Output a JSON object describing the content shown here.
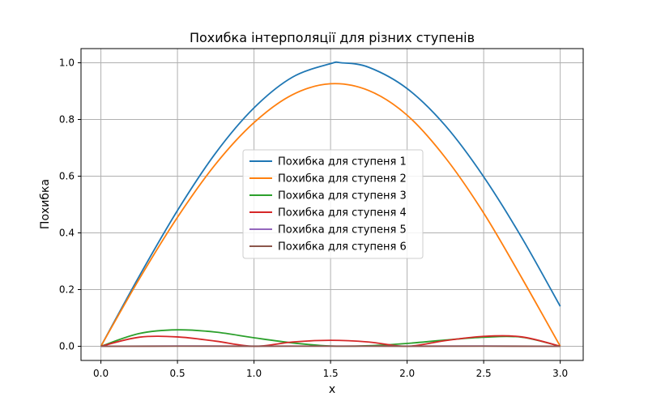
{
  "chart_data": {
    "type": "line",
    "title": "Похибка інтерполяції для різних ступенів",
    "xlabel": "x",
    "ylabel": "Похибка",
    "xlim": [
      -0.13,
      3.15
    ],
    "ylim": [
      -0.05,
      1.05
    ],
    "xticks": [
      "0.0",
      "0.5",
      "1.0",
      "1.5",
      "2.0",
      "2.5",
      "3.0"
    ],
    "yticks": [
      "0.0",
      "0.2",
      "0.4",
      "0.6",
      "0.8",
      "1.0"
    ],
    "grid": true,
    "legend_position": "center",
    "series": [
      {
        "name": "Похибка для ступеня 1",
        "color": "#1f77b4",
        "x": [
          0,
          0.25,
          0.5,
          0.75,
          1.0,
          1.25,
          1.5,
          1.57,
          1.75,
          2.0,
          2.25,
          2.5,
          2.75,
          3.0
        ],
        "y": [
          0,
          0.247,
          0.479,
          0.682,
          0.841,
          0.949,
          0.997,
          1.0,
          0.984,
          0.909,
          0.778,
          0.598,
          0.382,
          0.141
        ]
      },
      {
        "name": "Похибка для ступеня 2",
        "color": "#ff7f0e",
        "x": [
          0,
          0.25,
          0.5,
          0.75,
          1.0,
          1.25,
          1.5,
          1.75,
          2.0,
          2.25,
          2.5,
          2.75,
          3.0
        ],
        "y": [
          0,
          0.237,
          0.455,
          0.643,
          0.789,
          0.887,
          0.926,
          0.902,
          0.815,
          0.665,
          0.47,
          0.24,
          0
        ]
      },
      {
        "name": "Похибка для ступеня 3",
        "color": "#2ca02c",
        "x": [
          0,
          0.25,
          0.5,
          0.75,
          1.0,
          1.25,
          1.5,
          1.75,
          2.0,
          2.25,
          2.5,
          2.75,
          3.0
        ],
        "y": [
          0,
          0.045,
          0.058,
          0.05,
          0.03,
          0.012,
          0.001,
          0.002,
          0.01,
          0.022,
          0.032,
          0.032,
          0
        ]
      },
      {
        "name": "Похибка для ступеня 4",
        "color": "#d62728",
        "x": [
          0,
          0.25,
          0.5,
          0.75,
          1.0,
          1.25,
          1.5,
          1.75,
          2.0,
          2.25,
          2.5,
          2.75,
          3.0
        ],
        "y": [
          0,
          0.032,
          0.033,
          0.018,
          0,
          0.015,
          0.021,
          0.015,
          0,
          0.02,
          0.035,
          0.033,
          0
        ]
      },
      {
        "name": "Похибка для ступеня 5",
        "color": "#9467bd",
        "x": [
          0,
          0.5,
          1.0,
          1.5,
          2.0,
          2.5,
          3.0
        ],
        "y": [
          0,
          0.001,
          0.0005,
          0.0008,
          0.0005,
          0.001,
          0
        ]
      },
      {
        "name": "Похибка для ступеня 6",
        "color": "#8c564b",
        "x": [
          0,
          0.5,
          1.0,
          1.5,
          2.0,
          2.5,
          3.0
        ],
        "y": [
          0,
          0.0003,
          0.0002,
          0.0003,
          0.0002,
          0.0003,
          0
        ]
      }
    ]
  }
}
